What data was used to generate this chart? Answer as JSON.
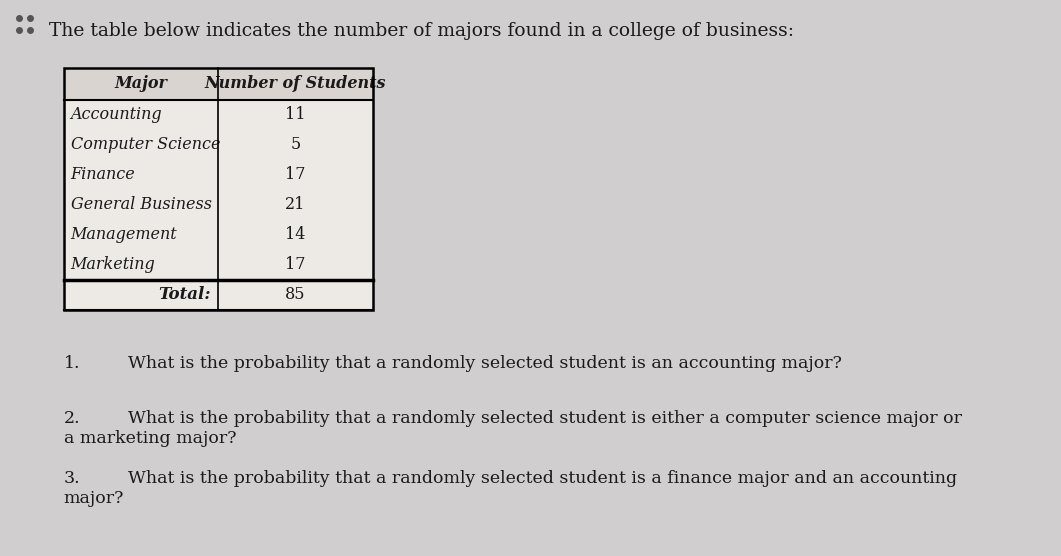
{
  "title": "The table below indicates the number of majors found in a college of business:",
  "table_headers": [
    "Major",
    "Number of Students"
  ],
  "table_rows": [
    [
      "Accounting",
      "11"
    ],
    [
      "Computer Science",
      "5"
    ],
    [
      "Finance",
      "17"
    ],
    [
      "General Business",
      "21"
    ],
    [
      "Management",
      "14"
    ],
    [
      "Marketing",
      "17"
    ]
  ],
  "table_total": [
    "Total:",
    "85"
  ],
  "questions": [
    {
      "number": "1.",
      "text": "What is the probability that a randomly selected student is an accounting major?"
    },
    {
      "number": "2.",
      "text": "What is the probability that a randomly selected student is either a computer science major or\na marketing major?"
    },
    {
      "number": "3.",
      "text": "What is the probability that a randomly selected student is a finance major and an accounting\nmajor?"
    }
  ],
  "bg_color": "#d0cece",
  "table_bg": "#ede9e5",
  "header_bg": "#d9d4cf",
  "font_color": "#1a1a1a",
  "title_fontsize": 13.5,
  "body_fontsize": 11.5,
  "question_fontsize": 12.5,
  "dot_color": "#555555"
}
